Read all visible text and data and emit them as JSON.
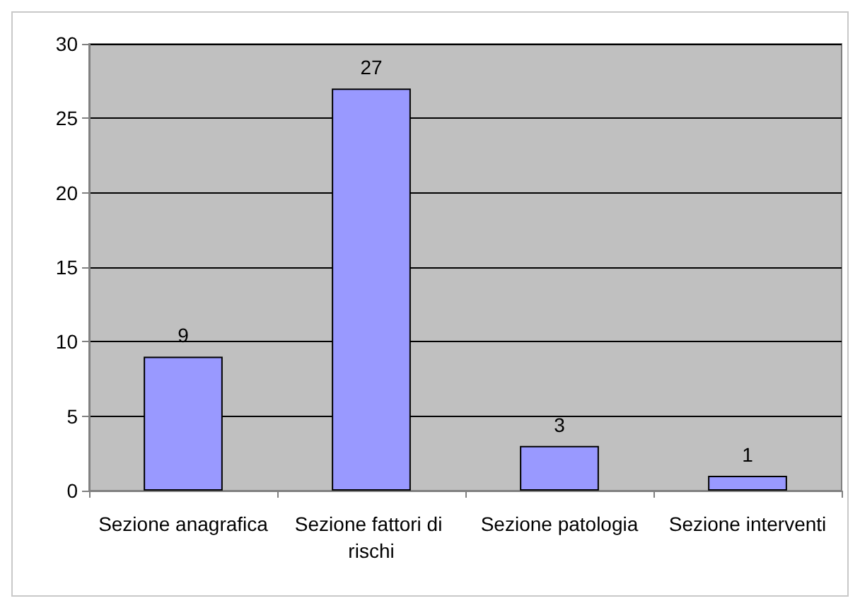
{
  "chart_data": {
    "type": "bar",
    "categories": [
      "Sezione anagrafica",
      "Sezione fattori di rischi",
      "Sezione patologia",
      "Sezione interventi"
    ],
    "values": [
      9,
      27,
      3,
      1
    ],
    "color": "#9999ff",
    "ylim": [
      0,
      30
    ],
    "yticks": [
      0,
      5,
      10,
      15,
      20,
      25,
      30
    ],
    "grid": "y",
    "data_labels": true
  }
}
